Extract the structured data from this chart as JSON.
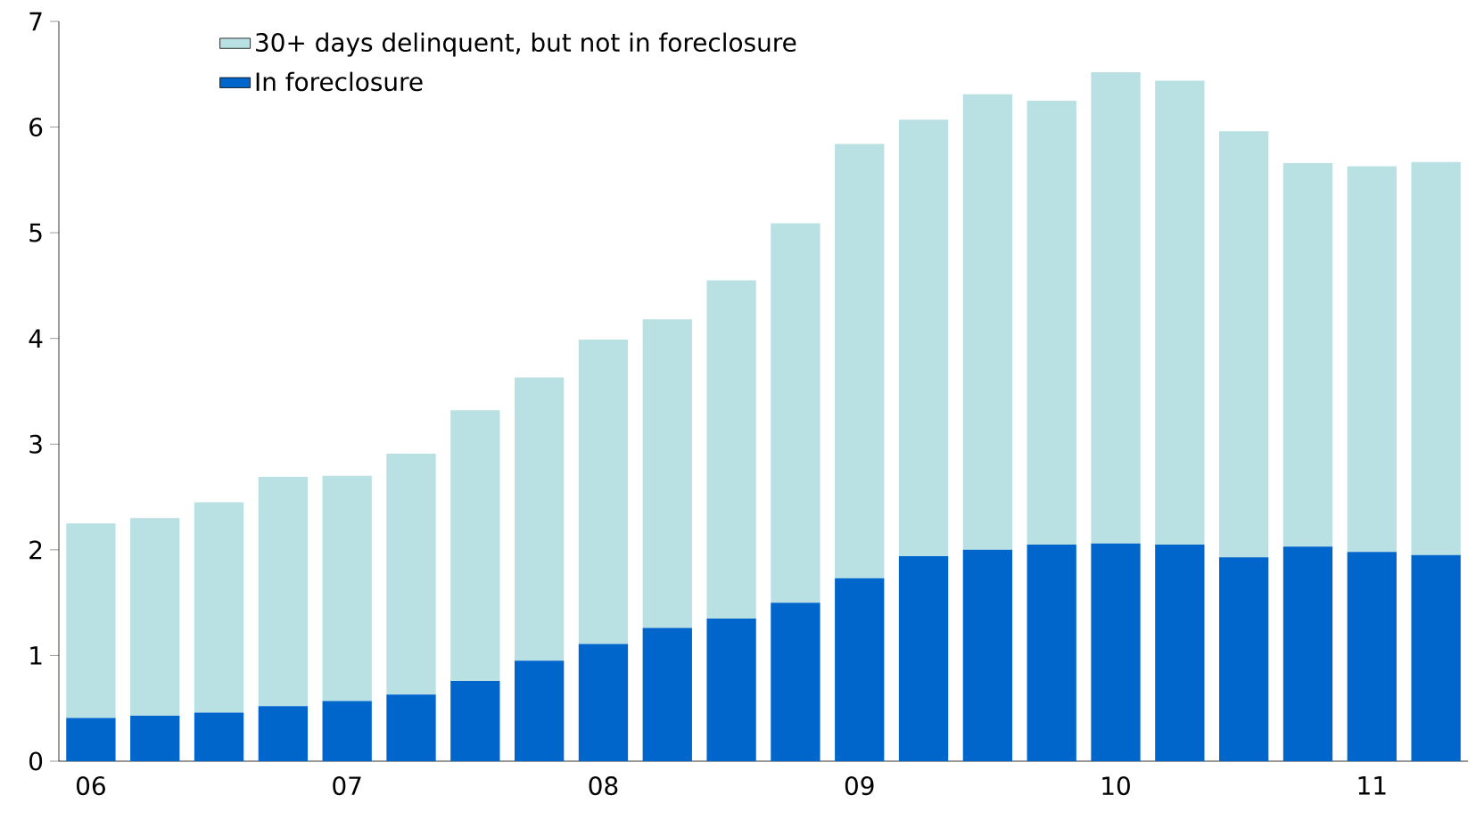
{
  "chart_data": {
    "type": "bar",
    "stacked": true,
    "categories": [
      "06",
      null,
      null,
      null,
      "07",
      null,
      null,
      null,
      "08",
      null,
      null,
      null,
      "09",
      null,
      null,
      null,
      "10",
      null,
      null,
      null,
      "11",
      null
    ],
    "series": [
      {
        "name": "In foreclosure",
        "color": "#0066cc",
        "values": [
          0.41,
          0.43,
          0.46,
          0.52,
          0.57,
          0.63,
          0.76,
          0.95,
          1.11,
          1.26,
          1.35,
          1.5,
          1.73,
          1.94,
          2.0,
          2.05,
          2.06,
          2.05,
          1.93,
          2.03,
          1.98,
          1.95
        ]
      },
      {
        "name": "30+ days delinquent, but not in foreclosure",
        "color": "#b9e0e3",
        "values": [
          1.84,
          1.87,
          1.99,
          2.17,
          2.13,
          2.28,
          2.56,
          2.68,
          2.88,
          2.92,
          3.2,
          3.59,
          4.11,
          4.13,
          4.31,
          4.2,
          4.46,
          4.39,
          4.03,
          3.63,
          3.65,
          3.72
        ]
      }
    ],
    "ylim": [
      0,
      7
    ],
    "yticks": [
      0,
      1,
      2,
      3,
      4,
      5,
      6,
      7
    ],
    "legend": "top left",
    "grid": false
  }
}
